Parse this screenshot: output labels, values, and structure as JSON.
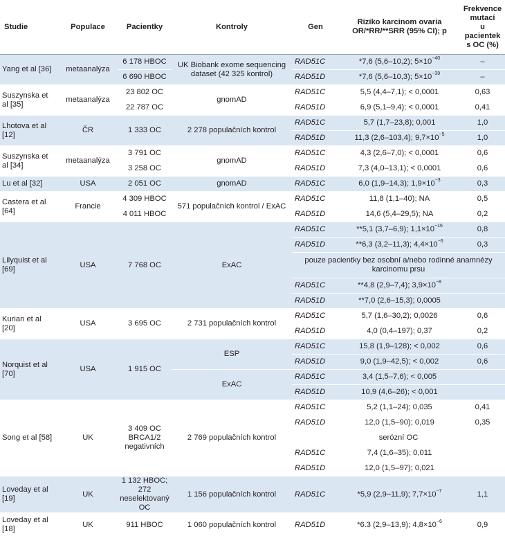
{
  "header": {
    "study": "Studie",
    "population": "Populace",
    "patients": "Pacientky",
    "controls": "Kontroly",
    "gene": "Gen",
    "risk_line1": "Riziko karcinom ovaria",
    "risk_line2": "OR/*RR/**SRR (95% CI); p",
    "freq_line1": "Frekvence",
    "freq_line2": "mutací",
    "freq_line3": "u pacientek",
    "freq_line4": "s OC (%)"
  },
  "rows": {
    "yang": {
      "study": "Yang et al [36]",
      "population": "metaanalýza",
      "patients_a": "6 178 HBOC",
      "patients_b": "6 690 HBOC",
      "controls": "UK Biobank exome sequencing dataset (42 325 kontrol)",
      "gene_a": "RAD51C",
      "risk_a": "*7,6 (5,6–10,2); 5×10",
      "exp_a": "−40",
      "freq_a": "–",
      "gene_b": "RAD51D",
      "risk_b": "*7,6 (5,6–10,3); 5×10",
      "exp_b": "−39",
      "freq_b": "–"
    },
    "suszynska35": {
      "study": "Suszynska et al [35]",
      "population": "metaanalýza",
      "patients_a": "23 802 OC",
      "patients_b": "22 787 OC",
      "controls": "gnomAD",
      "gene_a": "RAD51C",
      "risk_a": "5,5 (4,4–7,1); < 0,0001",
      "freq_a": "0,63",
      "gene_b": "RAD51D",
      "risk_b": "6,9 (5,1–9,4); < 0,0001",
      "freq_b": "0,41"
    },
    "lhotova": {
      "study": "Lhotova et al [12]",
      "population": "ČR",
      "patients": "1 333 OC",
      "controls": "2 278 populačních kontrol",
      "gene_a": "RAD51C",
      "risk_a": "5,7 (1,7–23,8); 0,001",
      "freq_a": "1,0",
      "gene_b": "RAD51D",
      "risk_b": "11,3 (2,6–103,4); 9,7×10",
      "exp_b": "−5",
      "freq_b": "1,0"
    },
    "suszynska34": {
      "study": "Suszynska et al [34]",
      "population": "metaanalýza",
      "patients_a": "3 791 OC",
      "patients_b": "3 258 OC",
      "controls": "gnomAD",
      "gene_a": "RAD51C",
      "risk_a": "4,3 (2,6–7,0); < 0,0001",
      "freq_a": "0,6",
      "gene_b": "RAD51D",
      "risk_b": "7,3 (4,0–13,1); < 0,0001",
      "freq_b": "0,6"
    },
    "lu": {
      "study": "Lu et al [32]",
      "population": "USA",
      "patients": "2 051 OC",
      "controls": "gnomAD",
      "gene": "RAD51C",
      "risk": "6,0 (1,9–14,3); 1,9×10",
      "exp": "−3",
      "freq": "0,3"
    },
    "castera": {
      "study": "Castera et al [64]",
      "population": "Francie",
      "patients_a": "4 309 HBOC",
      "patients_b": "4 011 HBOC",
      "controls": "571 populačních kontrol / ExAC",
      "gene_a": "RAD51C",
      "risk_a": "11,8 (1,1–40); NA",
      "freq_a": "0,5",
      "gene_b": "RAD51D",
      "risk_b": "14,6 (5,4–29,5); NA",
      "freq_b": "0,2"
    },
    "lilyquist": {
      "study": "Lilyquist et al [69]",
      "population": "USA",
      "patients": "7 768 OC",
      "controls": "ExAC",
      "gene_a": "RAD51C",
      "risk_a": "**5,1 (3,7–6,9); 1,1×10",
      "exp_a": "−16",
      "freq_a": "0,8",
      "gene_b": "RAD51D",
      "risk_b": "**6,3 (3,2–11,3); 4,4×10",
      "exp_b": "−6",
      "freq_b": "0,3",
      "note": "pouze pacientky bez osobní a/nebo rodinné anamnézy karcinomu prsu",
      "gene_c": "RAD51C",
      "risk_c": "**4,8 (2,9–7,4); 3,9×10",
      "exp_c": "−8",
      "gene_d": "RAD51D",
      "risk_d": "**7,0 (2,6–15,3); 0,0005"
    },
    "kurian": {
      "study": "Kurian et al [20]",
      "population": "USA",
      "patients": "3 695 OC",
      "controls": "2 731 populačních kontrol",
      "gene_a": "RAD51C",
      "risk_a": "5,7 (1,6–30,2); 0,0026",
      "freq_a": "0,6",
      "gene_b": "RAD51D",
      "risk_b": "4,0 (0,4–197); 0,37",
      "freq_b": "0,2"
    },
    "norquist": {
      "study": "Norquist et al [70]",
      "population": "USA",
      "patients": "1 915 OC",
      "controls_a": "ESP",
      "controls_b": "ExAC",
      "gene_a": "RAD51C",
      "risk_a": "15,8 (1,9–128); < 0,002",
      "freq_a": "0,6",
      "gene_b": "RAD51D",
      "risk_b": "9,0 (1,9–42,5); < 0,002",
      "freq_b": "0,6",
      "gene_c": "RAD51C",
      "risk_c": "3,4 (1,5–7,6); < 0,005",
      "gene_d": "RAD51D",
      "risk_d": "10,9 (4,6–26); < 0,001"
    },
    "song": {
      "study": "Song et al [58]",
      "population": "UK",
      "patients": "3 409 OC BRCA1/2 negativních",
      "controls": "2 769 populačních kontrol",
      "gene_a": "RAD51C",
      "risk_a": "5,2 (1,1–24); 0,035",
      "freq_a": "0,41",
      "gene_b": "RAD51D",
      "risk_b": "12,0 (1,5–90); 0,019",
      "freq_b": "0,35",
      "note": "serózní OC",
      "gene_c": "RAD51C",
      "risk_c": "7,4 (1,6–35); 0,011",
      "gene_d": "RAD51D",
      "risk_d": "12,0 (1,5–97); 0,021"
    },
    "loveday19": {
      "study": "Loveday et al [19]",
      "population": "UK",
      "patients": "1 132 HBOC; 272 neselektovaný OC",
      "controls": "1 156 populačních kontrol",
      "gene": "RAD51C",
      "risk": "*5,9 (2,9–11,9); 7,7×10",
      "exp": "−7",
      "freq": "1,1"
    },
    "loveday18": {
      "study": "Loveday et al [18]",
      "population": "UK",
      "patients": "911 HBOC",
      "controls": "1 060 populačních kontrol",
      "gene": "RAD51D",
      "risk": "*6.3 (2,9–13,9); 4,8×10",
      "exp": "−6",
      "freq": "0,9"
    }
  }
}
